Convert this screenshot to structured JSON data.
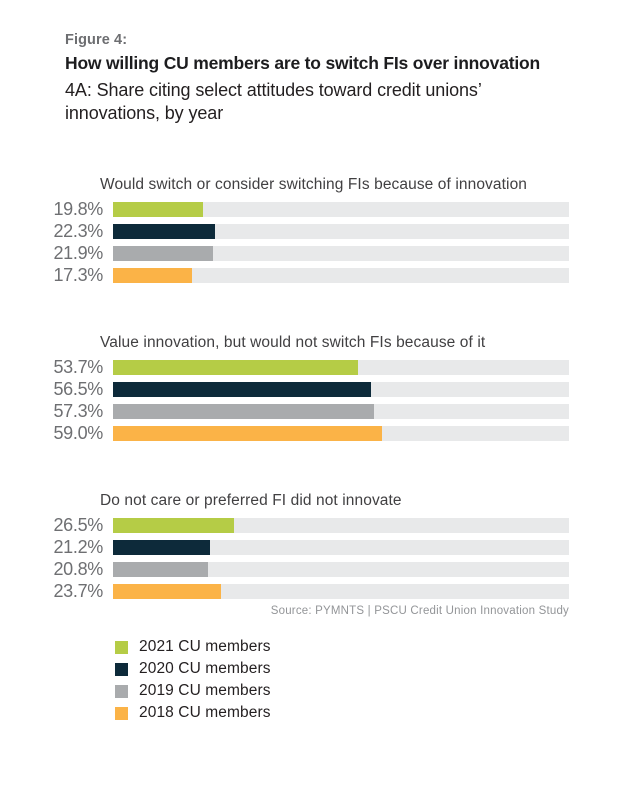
{
  "header": {
    "figure_label": "Figure 4:",
    "title": "How willing CU members are to switch FIs over innovation",
    "subtitle": "4A: Share citing select attitudes toward credit unions’ innovations, by year"
  },
  "source": "Source: PYMNTS | PSCU Credit Union Innovation Study",
  "colors": {
    "green_2021": "#b5cc46",
    "navy_2020": "#0d2a3a",
    "gray_2019": "#a9abad",
    "orange_2018": "#fbb347",
    "track": "#e8e9ea"
  },
  "chart_data": {
    "type": "bar",
    "orientation": "horizontal",
    "unit": "%",
    "x_range": [
      0,
      100
    ],
    "grid": false,
    "legend_position": "bottom-left",
    "categories_years": [
      "2021",
      "2020",
      "2019",
      "2018"
    ],
    "sections": [
      {
        "title": "Would switch or consider switching FIs because of innovation",
        "rows": [
          {
            "year": "2021",
            "value": 19.8,
            "display": "19.8%"
          },
          {
            "year": "2020",
            "value": 22.3,
            "display": "22.3%"
          },
          {
            "year": "2019",
            "value": 21.9,
            "display": "21.9%"
          },
          {
            "year": "2018",
            "value": 17.3,
            "display": "17.3%"
          }
        ]
      },
      {
        "title": "Value innovation, but would not switch FIs because of it",
        "rows": [
          {
            "year": "2021",
            "value": 53.7,
            "display": "53.7%"
          },
          {
            "year": "2020",
            "value": 56.5,
            "display": "56.5%"
          },
          {
            "year": "2019",
            "value": 57.3,
            "display": "57.3%"
          },
          {
            "year": "2018",
            "value": 59.0,
            "display": "59.0%"
          }
        ]
      },
      {
        "title": "Do not care or preferred FI did not innovate",
        "rows": [
          {
            "year": "2021",
            "value": 26.5,
            "display": "26.5%"
          },
          {
            "year": "2020",
            "value": 21.2,
            "display": "21.2%"
          },
          {
            "year": "2019",
            "value": 20.8,
            "display": "20.8%"
          },
          {
            "year": "2018",
            "value": 23.7,
            "display": "23.7%"
          }
        ]
      }
    ]
  },
  "legend": {
    "items": [
      {
        "label": "2021 CU members",
        "color": "#b5cc46"
      },
      {
        "label": "2020 CU members",
        "color": "#0d2a3a"
      },
      {
        "label": "2019 CU members",
        "color": "#a9abad"
      },
      {
        "label": "2018 CU members",
        "color": "#fbb347"
      }
    ]
  }
}
